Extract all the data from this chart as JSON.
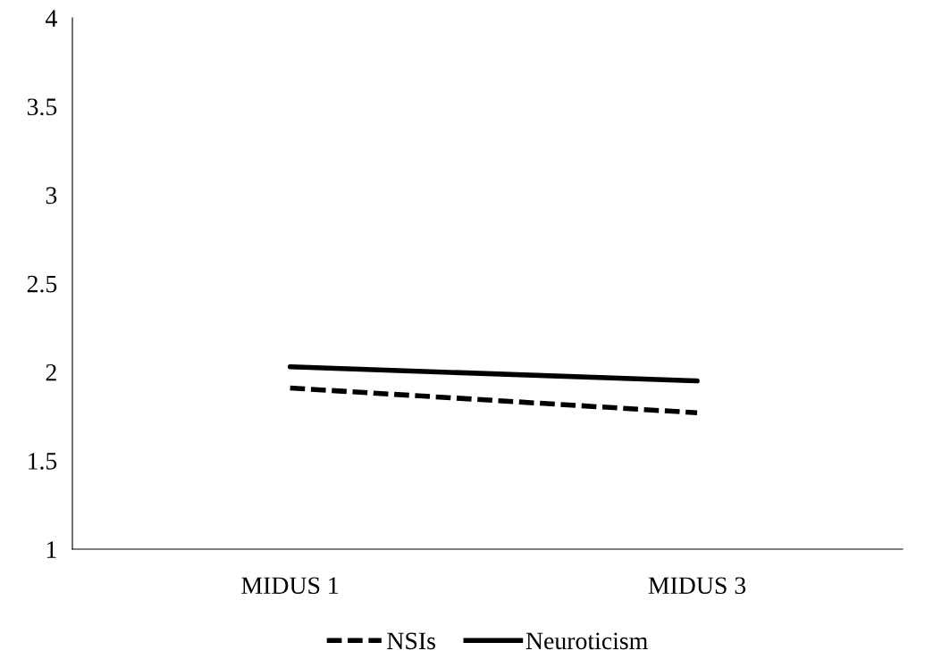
{
  "chart_data": {
    "type": "line",
    "categories": [
      "MIDUS 1",
      "MIDUS 3"
    ],
    "series": [
      {
        "name": "NSIs",
        "color": "#000000",
        "values": [
          1.91,
          1.77
        ],
        "line_style": "dashed"
      },
      {
        "name": "Neuroticism",
        "color": "#000000",
        "values": [
          2.03,
          1.95
        ],
        "line_style": "solid"
      }
    ],
    "ylim": [
      1,
      4
    ],
    "yticks": [
      1,
      1.5,
      2,
      2.5,
      3,
      3.5,
      4
    ],
    "grid": false,
    "legend": "bottom",
    "marker": "none"
  }
}
